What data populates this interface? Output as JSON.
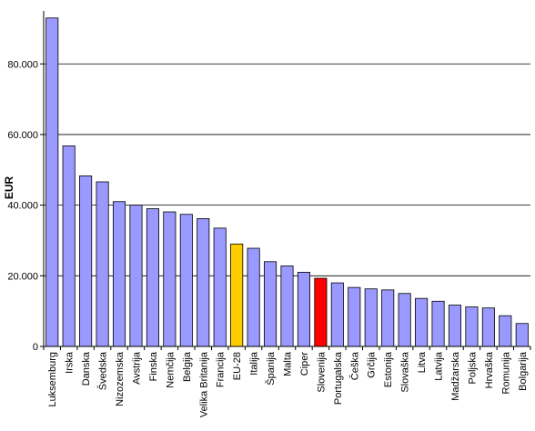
{
  "chart_data": {
    "type": "bar",
    "ylabel": "EUR",
    "ylim": [
      0,
      95000
    ],
    "yticks": [
      0,
      20000,
      40000,
      60000,
      80000
    ],
    "ytick_labels": [
      "0",
      "20.000",
      "40.000",
      "60.000",
      "80.000"
    ],
    "grid": true,
    "categories": [
      "Luksemburg",
      "Irska",
      "Danska",
      "Švedska",
      "Nizozemska",
      "Avstrija",
      "Finska",
      "Nemčija",
      "Belgija",
      "Velika Britanija",
      "Francija",
      "EU-28",
      "Italija",
      "Španija",
      "Malta",
      "Ciper",
      "Slovenija",
      "Portugalska",
      "Češka",
      "Grčija",
      "Estonija",
      "Slovaška",
      "Litva",
      "Latvija",
      "Madžarska",
      "Poljska",
      "Hrvaška",
      "Romunija",
      "Bolgarija"
    ],
    "values": [
      93000,
      56800,
      48300,
      46600,
      41000,
      40000,
      39000,
      38100,
      37400,
      36200,
      33500,
      29000,
      27800,
      24000,
      22800,
      21000,
      19300,
      18000,
      16700,
      16300,
      16000,
      15000,
      13600,
      12800,
      11700,
      11200,
      10900,
      8700,
      6500
    ],
    "colors": {
      "default": "#9999ff",
      "highlight_eu": "#ffcc00",
      "highlight_slovenia": "#ff0000"
    },
    "highlights": {
      "EU-28": "highlight_eu",
      "Slovenija": "highlight_slovenia"
    }
  }
}
